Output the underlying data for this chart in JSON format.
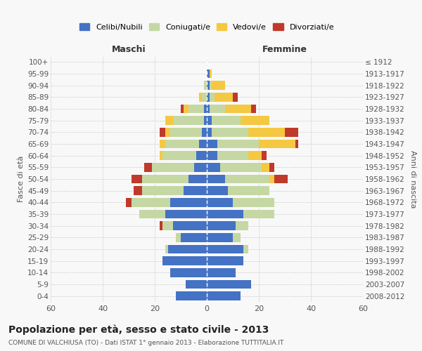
{
  "age_groups": [
    "0-4",
    "5-9",
    "10-14",
    "15-19",
    "20-24",
    "25-29",
    "30-34",
    "35-39",
    "40-44",
    "45-49",
    "50-54",
    "55-59",
    "60-64",
    "65-69",
    "70-74",
    "75-79",
    "80-84",
    "85-89",
    "90-94",
    "95-99",
    "100+"
  ],
  "birth_years": [
    "2008-2012",
    "2003-2007",
    "1998-2002",
    "1993-1997",
    "1988-1992",
    "1983-1987",
    "1978-1982",
    "1973-1977",
    "1968-1972",
    "1963-1967",
    "1958-1962",
    "1953-1957",
    "1948-1952",
    "1943-1947",
    "1938-1942",
    "1933-1937",
    "1928-1932",
    "1923-1927",
    "1918-1922",
    "1913-1917",
    "≤ 1912"
  ],
  "male": {
    "celibi": [
      12,
      8,
      14,
      17,
      15,
      10,
      13,
      16,
      14,
      9,
      7,
      5,
      4,
      3,
      2,
      1,
      1,
      0,
      0,
      0,
      0
    ],
    "coniugati": [
      0,
      0,
      0,
      0,
      1,
      2,
      4,
      10,
      15,
      16,
      18,
      16,
      13,
      13,
      12,
      12,
      6,
      2,
      1,
      0,
      0
    ],
    "vedovi": [
      0,
      0,
      0,
      0,
      0,
      0,
      0,
      0,
      0,
      0,
      0,
      0,
      1,
      2,
      2,
      3,
      2,
      1,
      0,
      0,
      0
    ],
    "divorziati": [
      0,
      0,
      0,
      0,
      0,
      0,
      1,
      0,
      2,
      3,
      4,
      3,
      0,
      0,
      2,
      0,
      1,
      0,
      0,
      0,
      0
    ]
  },
  "female": {
    "nubili": [
      13,
      17,
      11,
      14,
      14,
      10,
      11,
      14,
      10,
      8,
      7,
      5,
      4,
      4,
      2,
      2,
      1,
      1,
      1,
      1,
      0
    ],
    "coniugate": [
      0,
      0,
      0,
      0,
      2,
      3,
      5,
      12,
      16,
      16,
      17,
      16,
      12,
      16,
      14,
      11,
      6,
      2,
      1,
      0,
      0
    ],
    "vedove": [
      0,
      0,
      0,
      0,
      0,
      0,
      0,
      0,
      0,
      0,
      2,
      3,
      5,
      14,
      14,
      11,
      10,
      7,
      5,
      1,
      0
    ],
    "divorziate": [
      0,
      0,
      0,
      0,
      0,
      0,
      0,
      0,
      0,
      0,
      5,
      2,
      2,
      1,
      5,
      0,
      2,
      2,
      0,
      0,
      0
    ]
  },
  "colors": {
    "celibi": "#4472C4",
    "coniugati": "#C5D8A4",
    "vedovi": "#F5C842",
    "divorziati": "#C0392B"
  },
  "xlim": 60,
  "title": "Popolazione per età, sesso e stato civile - 2013",
  "subtitle": "COMUNE DI VALCHIUSA (TO) - Dati ISTAT 1° gennaio 2013 - Elaborazione TUTTITALIA.IT",
  "ylabel_left": "Fasce di età",
  "ylabel_right": "Anni di nascita",
  "xlabel_left": "Maschi",
  "xlabel_right": "Femmine",
  "legend_labels": [
    "Celibi/Nubili",
    "Coniugati/e",
    "Vedovi/e",
    "Divorziati/e"
  ],
  "background_color": "#f8f8f8"
}
